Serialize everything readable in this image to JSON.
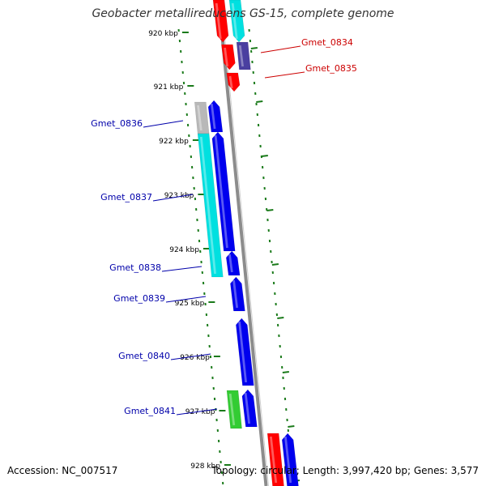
{
  "title": "Geobacter metallireducens GS-15, complete genome",
  "accession": "Accession: NC_007517",
  "summary": "Topology: circular; Length: 3,997,420 bp; Genes: 3,577",
  "colors": {
    "backbone": "#8c8c8c",
    "tick": "#1a7a1a",
    "tick_label": "#000000",
    "label_blue": "#0000aa",
    "label_red": "#cc0000",
    "red": "#ff0000",
    "cyan": "#00e0e0",
    "blue": "#0000ee",
    "navy": "#4a3fa0",
    "gray": "#b8b8b8",
    "green": "#33cc33"
  },
  "ticks": [
    "920 kbp",
    "921 kbp",
    "922 kbp",
    "923 kbp",
    "924 kbp",
    "925 kbp",
    "926 kbp",
    "927 kbp",
    "928 kbp"
  ],
  "genes": [
    {
      "name": "Gmet_0834",
      "color": "red"
    },
    {
      "name": "Gmet_0835",
      "color": "red"
    },
    {
      "name": "Gmet_0836",
      "color": "blue"
    },
    {
      "name": "Gmet_0837",
      "color": "blue"
    },
    {
      "name": "Gmet_0838",
      "color": "blue"
    },
    {
      "name": "Gmet_0839",
      "color": "blue"
    },
    {
      "name": "Gmet_0840",
      "color": "blue"
    },
    {
      "name": "Gmet_0841",
      "color": "blue"
    }
  ]
}
